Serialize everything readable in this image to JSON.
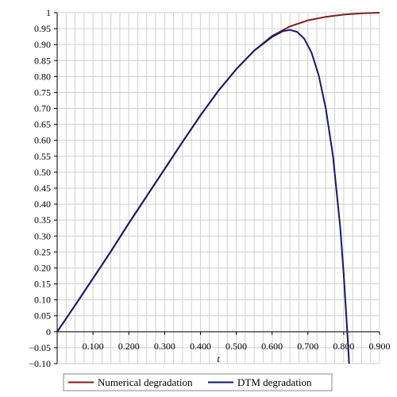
{
  "chart_data": {
    "type": "line",
    "title": "",
    "xlabel": "t",
    "ylabel": "",
    "xlim": [
      0,
      0.9
    ],
    "ylim": [
      -0.1,
      1.0
    ],
    "grid": true,
    "legend_position": "bottom",
    "x_ticks": [
      {
        "value": 0.1,
        "label": "0.100"
      },
      {
        "value": 0.2,
        "label": "0.200"
      },
      {
        "value": 0.3,
        "label": "0.300"
      },
      {
        "value": 0.4,
        "label": "0.400"
      },
      {
        "value": 0.5,
        "label": "0.500"
      },
      {
        "value": 0.6,
        "label": "0.600"
      },
      {
        "value": 0.7,
        "label": "0.700"
      },
      {
        "value": 0.8,
        "label": "0.800"
      },
      {
        "value": 0.9,
        "label": "0.900"
      }
    ],
    "y_ticks": [
      {
        "value": 1.0,
        "label": "1"
      },
      {
        "value": 0.95,
        "label": "0.95"
      },
      {
        "value": 0.9,
        "label": "0.90"
      },
      {
        "value": 0.85,
        "label": "0.85"
      },
      {
        "value": 0.8,
        "label": "0.80"
      },
      {
        "value": 0.75,
        "label": "0.75"
      },
      {
        "value": 0.7,
        "label": "0.70"
      },
      {
        "value": 0.65,
        "label": "0.65"
      },
      {
        "value": 0.6,
        "label": "0.60"
      },
      {
        "value": 0.55,
        "label": "0.55"
      },
      {
        "value": 0.5,
        "label": "0.50"
      },
      {
        "value": 0.45,
        "label": "0.45"
      },
      {
        "value": 0.4,
        "label": "0.40"
      },
      {
        "value": 0.35,
        "label": "0.35"
      },
      {
        "value": 0.3,
        "label": "0.30"
      },
      {
        "value": 0.25,
        "label": "0.25"
      },
      {
        "value": 0.2,
        "label": "0.20"
      },
      {
        "value": 0.15,
        "label": "0.15"
      },
      {
        "value": 0.1,
        "label": "0.10"
      },
      {
        "value": 0.05,
        "label": "0.05"
      },
      {
        "value": 0.0,
        "label": "0"
      },
      {
        "value": -0.05,
        "label": "−0.05"
      },
      {
        "value": -0.1,
        "label": "−0.10"
      }
    ],
    "series": [
      {
        "name": "Numerical degradation",
        "color": "#7f1d1d",
        "x": [
          0,
          0.05,
          0.1,
          0.15,
          0.2,
          0.25,
          0.3,
          0.35,
          0.4,
          0.45,
          0.5,
          0.55,
          0.6,
          0.65,
          0.7,
          0.75,
          0.8,
          0.85,
          0.9
        ],
        "y": [
          0,
          0.083,
          0.167,
          0.252,
          0.34,
          0.425,
          0.51,
          0.595,
          0.678,
          0.755,
          0.823,
          0.881,
          0.927,
          0.957,
          0.976,
          0.987,
          0.994,
          0.998,
          1.0
        ]
      },
      {
        "name": "DTM degradation",
        "color": "#14186b",
        "x": [
          0,
          0.05,
          0.1,
          0.15,
          0.2,
          0.25,
          0.3,
          0.35,
          0.4,
          0.45,
          0.5,
          0.55,
          0.6,
          0.63,
          0.65,
          0.67,
          0.69,
          0.71,
          0.73,
          0.75,
          0.77,
          0.79,
          0.8,
          0.81,
          0.815
        ],
        "y": [
          0,
          0.083,
          0.167,
          0.252,
          0.34,
          0.425,
          0.51,
          0.595,
          0.678,
          0.755,
          0.823,
          0.881,
          0.924,
          0.942,
          0.946,
          0.94,
          0.918,
          0.875,
          0.805,
          0.7,
          0.55,
          0.33,
          0.18,
          0.0,
          -0.1
        ]
      }
    ]
  }
}
